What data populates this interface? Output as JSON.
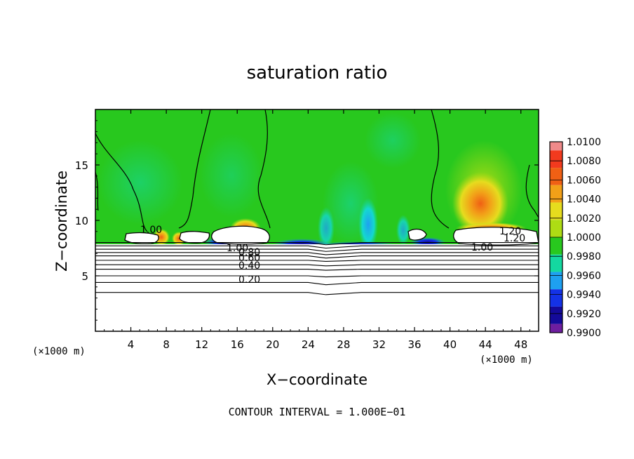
{
  "chart_data": {
    "type": "heatmap",
    "title": "saturation ratio",
    "xlabel": "X−coordinate",
    "ylabel": "Z−coordinate",
    "x_unit": "(×1000 m)",
    "y_unit": "(×1000 m)",
    "xlim": [
      0,
      50
    ],
    "ylim": [
      0,
      20
    ],
    "x_ticks": [
      4,
      8,
      12,
      16,
      20,
      24,
      28,
      32,
      36,
      40,
      44,
      48
    ],
    "y_ticks": [
      5,
      10,
      15
    ],
    "colorbar": {
      "levels": [
        1.01,
        1.008,
        1.006,
        1.004,
        1.002,
        1.0,
        0.998,
        0.996,
        0.994,
        0.992,
        0.99
      ],
      "labels": [
        "1.0100",
        "1.0080",
        "1.0060",
        "1.0040",
        "1.0020",
        "1.0000",
        "0.9980",
        "0.9960",
        "0.9940",
        "0.9920",
        "0.9900"
      ],
      "colors": [
        "#f08a8a",
        "#f23a1e",
        "#f06014",
        "#f2a018",
        "#e6dc1e",
        "#aedc14",
        "#28c81e",
        "#14d8a0",
        "#1ea0f0",
        "#1432e6",
        "#140a9a",
        "#6e1ea0"
      ]
    },
    "contour_labels": [
      "1.00",
      "1.00",
      "1.00",
      "0.80",
      "0.60",
      "0.40",
      "0.20",
      "1.20",
      "1.20"
    ],
    "contour_interval_text": "CONTOUR INTERVAL = 1.000E−01",
    "contour_lines": [
      {
        "z": [
          3.5,
          3.5,
          3.5,
          3.5,
          3.3,
          3.5,
          3.5
        ]
      },
      {
        "z": [
          4.4,
          4.4,
          4.4,
          4.4,
          4.2,
          4.4,
          4.4
        ]
      },
      {
        "z": [
          5.0,
          5.0,
          5.0,
          5.0,
          4.9,
          5.0,
          5.0
        ]
      },
      {
        "z": [
          5.6,
          5.6,
          5.6,
          5.6,
          5.5,
          5.6,
          5.6
        ]
      },
      {
        "z": [
          6.0,
          6.0,
          6.0,
          6.0,
          5.9,
          6.0,
          6.0
        ]
      },
      {
        "z": [
          6.4,
          6.4,
          6.4,
          6.4,
          6.3,
          6.4,
          6.4
        ]
      },
      {
        "z": [
          6.8,
          6.8,
          6.8,
          6.8,
          6.6,
          6.8,
          6.8
        ]
      },
      {
        "z": [
          7.1,
          7.1,
          7.1,
          7.1,
          6.9,
          7.1,
          7.1
        ]
      },
      {
        "z": [
          7.4,
          7.4,
          7.4,
          7.4,
          7.2,
          7.4,
          7.4
        ]
      },
      {
        "z": [
          7.7,
          7.7,
          7.7,
          7.7,
          7.5,
          7.7,
          7.7
        ]
      },
      {
        "z": [
          8.0,
          8.0,
          8.0,
          8.0,
          7.8,
          8.0,
          8.0
        ]
      }
    ],
    "contour_x": [
      0,
      10,
      20,
      24,
      26,
      30,
      50
    ]
  }
}
